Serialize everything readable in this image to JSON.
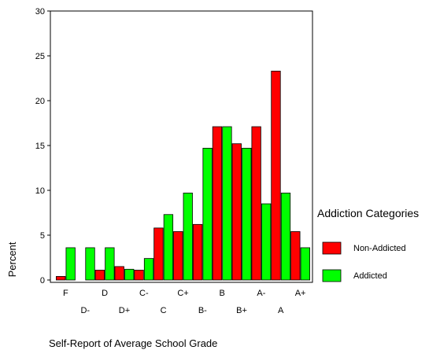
{
  "chart_data": {
    "type": "bar",
    "xlabel": "Self-Report of Average School Grade",
    "ylabel": "Percent",
    "ylim": [
      0,
      30
    ],
    "yticks": [
      0,
      5,
      10,
      15,
      20,
      25,
      30
    ],
    "grid": false,
    "categories": [
      "F",
      "D-",
      "D",
      "D+",
      "C-",
      "C",
      "C+",
      "B-",
      "B",
      "B+",
      "A-",
      "A",
      "A+"
    ],
    "legend": {
      "title": "Addiction Categories",
      "placement": "right"
    },
    "series": [
      {
        "name": "Non-Addicted",
        "color": "#ff0000",
        "values": [
          0.4,
          0.0,
          1.1,
          1.5,
          1.1,
          5.8,
          5.4,
          6.2,
          17.1,
          15.2,
          17.1,
          23.3,
          5.4
        ]
      },
      {
        "name": "Addicted",
        "color": "#00ff00",
        "values": [
          3.6,
          3.6,
          3.6,
          1.2,
          2.4,
          7.3,
          9.7,
          14.7,
          17.1,
          14.7,
          8.5,
          9.7,
          3.6
        ]
      }
    ]
  }
}
